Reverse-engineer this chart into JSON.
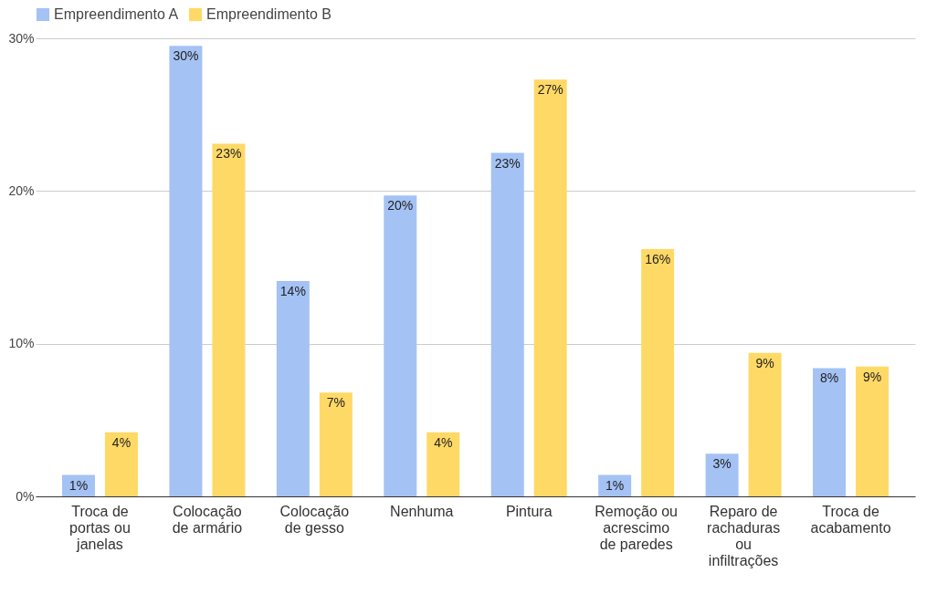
{
  "chart_data": {
    "type": "bar",
    "categories": [
      "Troca de portas ou janelas",
      "Colocação de armário",
      "Colocação de gesso",
      "Nenhuma",
      "Pintura",
      "Remoção ou acrescimo de paredes",
      "Reparo de rachaduras ou infiltrações",
      "Troca de acabamento"
    ],
    "series": [
      {
        "name": "Empreendimento A",
        "color": "#a4c2f4",
        "values": [
          1.4,
          29.5,
          14.1,
          19.7,
          22.5,
          1.4,
          2.8,
          8.4
        ],
        "value_labels": [
          "1%",
          "30%",
          "14%",
          "20%",
          "23%",
          "1%",
          "3%",
          "8%"
        ]
      },
      {
        "name": "Empreendimento B",
        "color": "#ffd966",
        "values": [
          4.2,
          23.1,
          6.8,
          4.2,
          27.3,
          16.2,
          9.4,
          8.5
        ],
        "value_labels": [
          "4%",
          "23%",
          "7%",
          "4%",
          "27%",
          "16%",
          "9%",
          "9%"
        ]
      }
    ],
    "ylim": [
      0,
      30
    ],
    "yticks": [
      {
        "value": 0,
        "label": "0%"
      },
      {
        "value": 10,
        "label": "10%"
      },
      {
        "value": 20,
        "label": "20%"
      },
      {
        "value": 30,
        "label": "30%"
      }
    ],
    "grid": "y",
    "legend": "top"
  }
}
